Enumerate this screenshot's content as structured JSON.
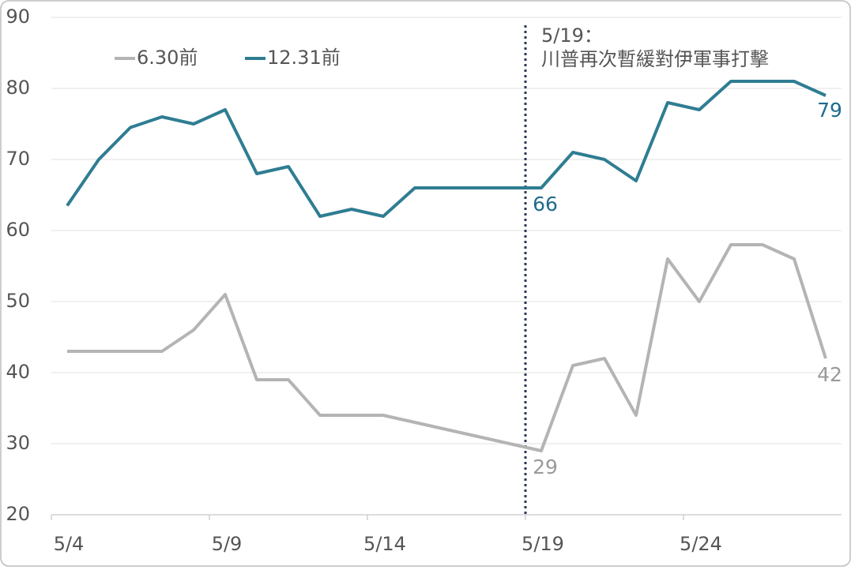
{
  "chart_data": {
    "type": "line",
    "categories": [
      "5/4",
      null,
      null,
      null,
      null,
      "5/9",
      null,
      null,
      null,
      null,
      "5/14",
      null,
      null,
      null,
      null,
      "5/19",
      null,
      null,
      null,
      null,
      "5/24",
      null,
      null,
      null,
      null
    ],
    "series": [
      {
        "name": "6.30前",
        "color": "#b4b4b4",
        "label_color": "#9a9a9a",
        "values": [
          43,
          43,
          43,
          43,
          46,
          51,
          39,
          39,
          34,
          34,
          34,
          33,
          32,
          31,
          30,
          29,
          41,
          42,
          34,
          56,
          50,
          58,
          58,
          56,
          42
        ],
        "value_labels": [
          null,
          null,
          null,
          null,
          null,
          null,
          null,
          null,
          null,
          null,
          null,
          null,
          null,
          null,
          null,
          "29",
          null,
          null,
          null,
          null,
          null,
          null,
          null,
          null,
          "42"
        ]
      },
      {
        "name": "12.31前",
        "color": "#2f7d92",
        "label_color": "#1e6b8c",
        "values": [
          63.5,
          70,
          74.5,
          76,
          75,
          77,
          68,
          69,
          62,
          63,
          62,
          66,
          66,
          66,
          66,
          66,
          71,
          70,
          67,
          78,
          77,
          81,
          81,
          81,
          79
        ],
        "value_labels": [
          null,
          null,
          null,
          null,
          null,
          null,
          null,
          null,
          null,
          null,
          null,
          null,
          null,
          null,
          null,
          "66",
          null,
          null,
          null,
          null,
          null,
          null,
          null,
          null,
          "79"
        ]
      }
    ],
    "ylim": [
      20,
      90
    ],
    "yticks": [
      20,
      30,
      40,
      50,
      60,
      70,
      80,
      90
    ],
    "grid": true,
    "annotation": {
      "at": "5/19",
      "lines": [
        "5/19：",
        "川普再次暫緩對伊軍事打擊"
      ]
    }
  }
}
